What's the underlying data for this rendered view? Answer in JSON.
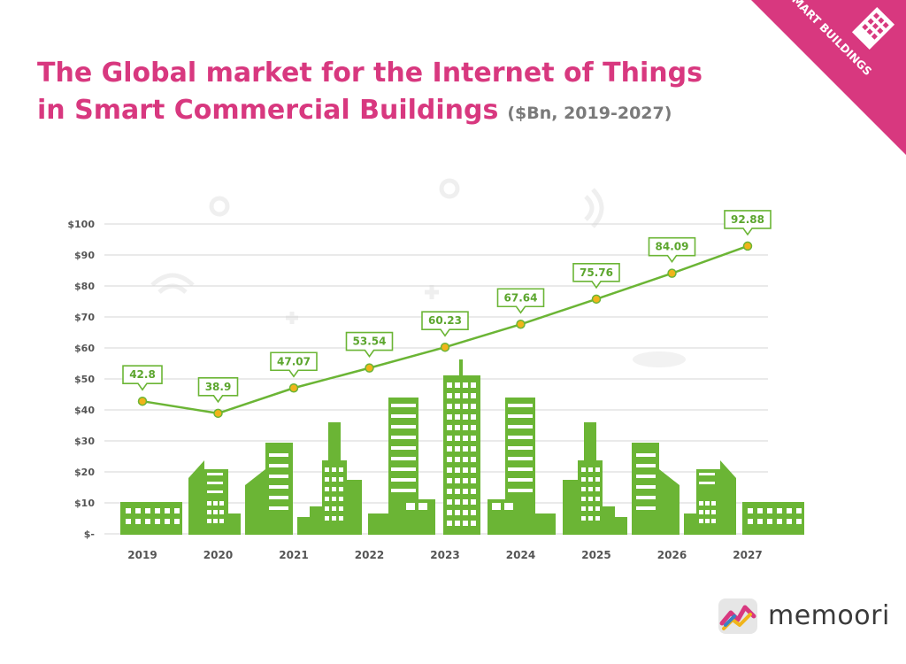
{
  "header": {
    "title_line1": "The Global market for the Internet of Things",
    "title_line2": "in Smart Commercial Buildings",
    "subtitle": "($Bn, 2019-2027)"
  },
  "corner_badge": {
    "label": "SMART BUILDINGS",
    "color": "#d8387f",
    "icon": "building-icon"
  },
  "brand": {
    "name": "memoori",
    "icon": "memoori-logo-icon"
  },
  "colors": {
    "accent": "#d8387f",
    "line": "#6bb535",
    "buildings": "#6bb535",
    "grid": "#d6d6d6",
    "point": "#f0b41a"
  },
  "chart_data": {
    "type": "line",
    "title": "The Global market for the Internet of Things in Smart Commercial Buildings",
    "subtitle": "($Bn, 2019-2027)",
    "categories": [
      "2019",
      "2020",
      "2021",
      "2022",
      "2023",
      "2024",
      "2025",
      "2026",
      "2027"
    ],
    "values": [
      42.8,
      38.9,
      47.07,
      53.54,
      60.23,
      67.64,
      75.76,
      84.09,
      92.88
    ],
    "value_labels": [
      "42.8",
      "38.9",
      "47.07",
      "53.54",
      "60.23",
      "67.64",
      "75.76",
      "84.09",
      "92.88"
    ],
    "y_ticks": [
      "$-",
      "$10",
      "$20",
      "$30",
      "$40",
      "$50",
      "$60",
      "$70",
      "$80",
      "$90",
      "$100"
    ],
    "ylim": [
      0,
      100
    ],
    "xlabel": "",
    "ylabel": "",
    "grid": true
  }
}
